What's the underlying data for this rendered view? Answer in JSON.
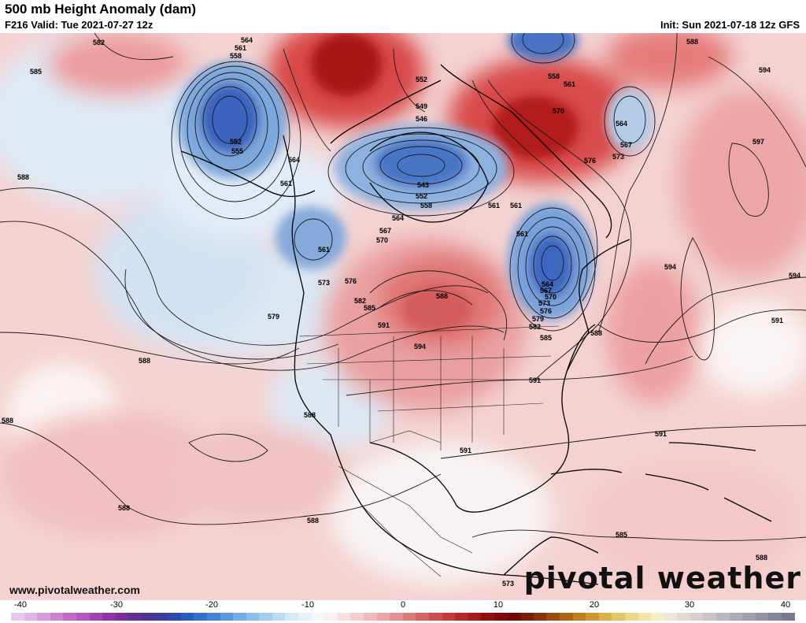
{
  "header": {
    "title": "500 mb Height Anomaly (dam)",
    "valid": "F216 Valid: Tue 2021-07-27 12z",
    "init": "Init: Sun 2021-07-18 12z GFS"
  },
  "footer": {
    "website": "www.pivotalweather.com",
    "logo": "pivotal weather"
  },
  "colorbar": {
    "ticks": [
      "-40",
      "-30",
      "-20",
      "-10",
      "0",
      "10",
      "20",
      "30",
      "40"
    ],
    "colors": [
      "#e8c8ea",
      "#e0b4e4",
      "#d69cdc",
      "#cc84d2",
      "#c06cc8",
      "#b258be",
      "#a044b2",
      "#8c34a6",
      "#783096",
      "#62308e",
      "#4c3490",
      "#3c3c9c",
      "#2c4aac",
      "#2a5cbe",
      "#3470cc",
      "#4684d6",
      "#5c98de",
      "#74ace6",
      "#8cbeec",
      "#a4cef0",
      "#bcdcf4",
      "#d4e8f6",
      "#e6f0f8",
      "#f4f8fb",
      "#fbf0f0",
      "#f8e0e0",
      "#f4cece",
      "#f0baba",
      "#eaa6a6",
      "#e49090",
      "#dc7a7a",
      "#d46464",
      "#cc4e4e",
      "#c23a3a",
      "#b42828",
      "#a41a1a",
      "#921010",
      "#800a0a",
      "#700808",
      "#7a1e06",
      "#8a3208",
      "#9c4a0e",
      "#ae6416",
      "#c07e22",
      "#ce9634",
      "#dab04c",
      "#e4c468",
      "#ecd688",
      "#f2e4a8",
      "#f6eec4",
      "#f0e6d8",
      "#e4dad4",
      "#d8ced0",
      "#cac2c8",
      "#bcb6c0",
      "#aeaab8",
      "#a09eae",
      "#9292a4",
      "#84869a",
      "#787a90"
    ]
  },
  "map": {
    "contour_labels": [
      "582",
      "585",
      "564",
      "561",
      "558",
      "552",
      "555",
      "564",
      "561",
      "552",
      "549",
      "546",
      "543",
      "552",
      "558",
      "564",
      "567",
      "570",
      "561",
      "573",
      "576",
      "579",
      "582",
      "585",
      "588",
      "591",
      "594",
      "561",
      "561",
      "558",
      "561",
      "570",
      "564",
      "567",
      "573",
      "576",
      "588",
      "594",
      "597",
      "594",
      "594",
      "591",
      "561",
      "564",
      "567",
      "570",
      "573",
      "576",
      "579",
      "582",
      "585",
      "588",
      "591",
      "591",
      "591",
      "588",
      "588",
      "588",
      "588",
      "588",
      "588",
      "588",
      "585",
      "573"
    ]
  }
}
